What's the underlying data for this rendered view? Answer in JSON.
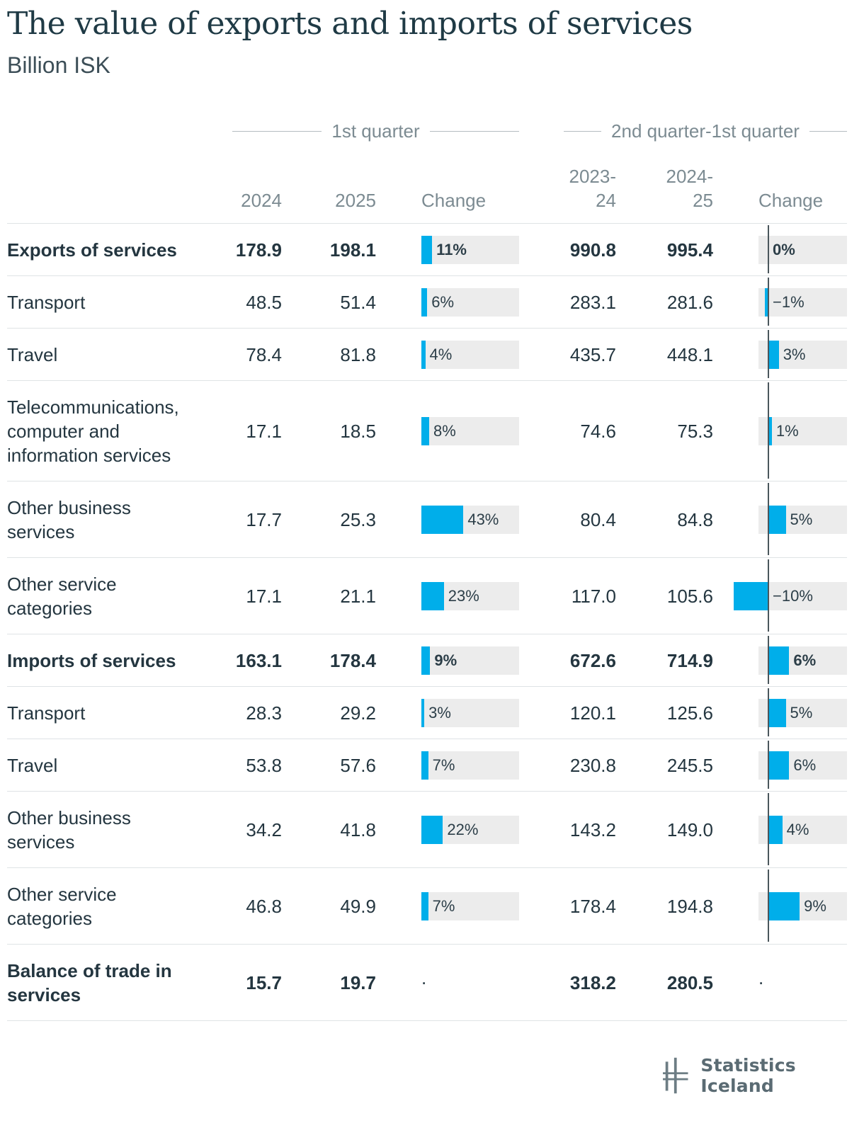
{
  "title": "The value of exports and imports of services",
  "subtitle": "Billion ISK",
  "groups": {
    "first": "1st quarter",
    "second": "2nd quarter-1st quarter"
  },
  "columns": {
    "c2024": "2024",
    "c2025": "2025",
    "change1": "Change",
    "c2023_24_a": "2023-",
    "c2023_24_b": "24",
    "c2024_25_a": "2024-",
    "c2024_25_b": "25",
    "change2": "Change"
  },
  "colors": {
    "bar": "#00aeea",
    "bar_bg": "#ececec",
    "axis": "#4a565c"
  },
  "chart_data": {
    "type": "table",
    "rows": [
      {
        "label": [
          "Exports of services"
        ],
        "bold": true,
        "v2024": "178.9",
        "v2025": "198.1",
        "change1": 11,
        "change1_label": "11%",
        "v2023_24": "990.8",
        "v2024_25": "995.4",
        "change2": 0,
        "change2_label": "0%"
      },
      {
        "label": [
          "Transport"
        ],
        "bold": false,
        "v2024": "48.5",
        "v2025": "51.4",
        "change1": 6,
        "change1_label": "6%",
        "v2023_24": "283.1",
        "v2024_25": "281.6",
        "change2": -1,
        "change2_label": "−1%"
      },
      {
        "label": [
          "Travel"
        ],
        "bold": false,
        "v2024": "78.4",
        "v2025": "81.8",
        "change1": 4,
        "change1_label": "4%",
        "v2023_24": "435.7",
        "v2024_25": "448.1",
        "change2": 3,
        "change2_label": "3%"
      },
      {
        "label": [
          "Telecommunications,",
          "computer and",
          "information services"
        ],
        "bold": false,
        "v2024": "17.1",
        "v2025": "18.5",
        "change1": 8,
        "change1_label": "8%",
        "v2023_24": "74.6",
        "v2024_25": "75.3",
        "change2": 1,
        "change2_label": "1%"
      },
      {
        "label": [
          "Other business",
          "services"
        ],
        "bold": false,
        "v2024": "17.7",
        "v2025": "25.3",
        "change1": 43,
        "change1_label": "43%",
        "v2023_24": "80.4",
        "v2024_25": "84.8",
        "change2": 5,
        "change2_label": "5%"
      },
      {
        "label": [
          "Other service",
          "categories"
        ],
        "bold": false,
        "v2024": "17.1",
        "v2025": "21.1",
        "change1": 23,
        "change1_label": "23%",
        "v2023_24": "117.0",
        "v2024_25": "105.6",
        "change2": -10,
        "change2_label": "−10%"
      },
      {
        "label": [
          "Imports of services"
        ],
        "bold": true,
        "v2024": "163.1",
        "v2025": "178.4",
        "change1": 9,
        "change1_label": "9%",
        "v2023_24": "672.6",
        "v2024_25": "714.9",
        "change2": 6,
        "change2_label": "6%"
      },
      {
        "label": [
          "Transport"
        ],
        "bold": false,
        "v2024": "28.3",
        "v2025": "29.2",
        "change1": 3,
        "change1_label": "3%",
        "v2023_24": "120.1",
        "v2024_25": "125.6",
        "change2": 5,
        "change2_label": "5%"
      },
      {
        "label": [
          "Travel"
        ],
        "bold": false,
        "v2024": "53.8",
        "v2025": "57.6",
        "change1": 7,
        "change1_label": "7%",
        "v2023_24": "230.8",
        "v2024_25": "245.5",
        "change2": 6,
        "change2_label": "6%"
      },
      {
        "label": [
          "Other business",
          "services"
        ],
        "bold": false,
        "v2024": "34.2",
        "v2025": "41.8",
        "change1": 22,
        "change1_label": "22%",
        "v2023_24": "143.2",
        "v2024_25": "149.0",
        "change2": 4,
        "change2_label": "4%"
      },
      {
        "label": [
          "Other service",
          "categories"
        ],
        "bold": false,
        "v2024": "46.8",
        "v2025": "49.9",
        "change1": 7,
        "change1_label": "7%",
        "v2023_24": "178.4",
        "v2024_25": "194.8",
        "change2": 9,
        "change2_label": "9%"
      },
      {
        "label": [
          "Balance of trade in",
          "services"
        ],
        "bold": true,
        "v2024": "15.7",
        "v2025": "19.7",
        "change1": null,
        "change1_label": ".",
        "v2023_24": "318.2",
        "v2024_25": "280.5",
        "change2": null,
        "change2_label": "."
      }
    ]
  },
  "logo": {
    "text": "Statistics Iceland"
  }
}
